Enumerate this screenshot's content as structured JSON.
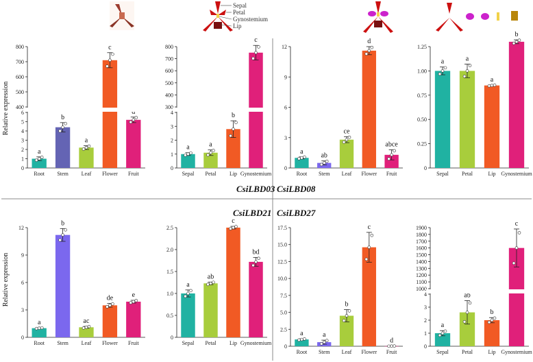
{
  "figure": {
    "colors": {
      "teal": "#20b2a2",
      "slate_blue": "#6464b4",
      "violet": "#7b68ee",
      "lime": "#a8cd3c",
      "orange": "#f15a24",
      "magenta": "#e0207a",
      "dots": "#ffffff",
      "divider": "#888888"
    },
    "flower_parts": [
      "Sepal",
      "Petal",
      "Gynostemium",
      "Lip"
    ],
    "gene_labels": [
      "CsiLBD03",
      "CsiLBD08",
      "CsiLBD21",
      "CsiLBD27"
    ],
    "ylabel": "Relative expression"
  },
  "chart_data": [
    {
      "type": "bar",
      "panel": "top-left-1",
      "gene": "CsiLBD03",
      "categories": [
        "Root",
        "Stem",
        "Leaf",
        "Flower",
        "Fruit"
      ],
      "values": [
        1.0,
        4.4,
        2.2,
        710,
        5.2
      ],
      "errors": [
        0.2,
        0.5,
        0.2,
        50,
        0.3
      ],
      "letters": [
        "a",
        "b",
        "a",
        "c",
        "d"
      ],
      "color_keys": [
        "teal",
        "slate_blue",
        "lime",
        "orange",
        "magenta"
      ],
      "broken_axis": true,
      "lower_ticks": [
        0,
        1,
        2,
        3,
        4,
        5,
        6
      ],
      "upper_ticks": [
        400,
        500,
        600,
        700,
        800
      ],
      "ylabel": "Relative expression"
    },
    {
      "type": "bar",
      "panel": "top-left-2",
      "gene": "CsiLBD03",
      "categories": [
        "Sepal",
        "Petal",
        "Lip",
        "Gynostemium"
      ],
      "values": [
        1.0,
        1.1,
        2.8,
        750
      ],
      "errors": [
        0.1,
        0.2,
        0.6,
        60
      ],
      "letters": [
        "a",
        "a",
        "b",
        "c"
      ],
      "color_keys": [
        "teal",
        "lime",
        "orange",
        "magenta"
      ],
      "broken_axis": true,
      "lower_ticks": [
        0,
        1,
        2,
        3,
        4
      ],
      "upper_ticks": [
        300,
        400,
        500,
        600,
        700,
        800
      ]
    },
    {
      "type": "bar",
      "panel": "top-right-1",
      "gene": "CsiLBD08",
      "categories": [
        "Root",
        "Stem",
        "Leaf",
        "Flower",
        "Fruit"
      ],
      "values": [
        1.0,
        0.5,
        2.8,
        11.6,
        1.3
      ],
      "errors": [
        0.1,
        0.2,
        0.3,
        0.4,
        0.5
      ],
      "letters": [
        "a",
        "ab",
        "ce",
        "d",
        "abce"
      ],
      "color_keys": [
        "teal",
        "violet",
        "lime",
        "orange",
        "magenta"
      ],
      "ylim": [
        0,
        12
      ],
      "ticks": [
        0,
        3,
        6,
        9,
        12
      ]
    },
    {
      "type": "bar",
      "panel": "top-right-2",
      "gene": "CsiLBD08",
      "categories": [
        "Sepal",
        "Petal",
        "Lip",
        "Gynostemium"
      ],
      "values": [
        1.0,
        1.0,
        0.85,
        1.3
      ],
      "errors": [
        0.04,
        0.07,
        0.005,
        0.02
      ],
      "letters": [
        "a",
        "a",
        "a",
        "b"
      ],
      "color_keys": [
        "teal",
        "lime",
        "orange",
        "magenta"
      ],
      "ylim": [
        0,
        1.25
      ],
      "ticks": [
        0,
        0.25,
        0.5,
        0.75,
        1.0,
        1.25
      ],
      "tick_labels": [
        "0",
        "0.25",
        "0.50",
        "0.75",
        "1.00",
        "1.25"
      ]
    },
    {
      "type": "bar",
      "panel": "bottom-left-1",
      "gene": "CsiLBD21",
      "categories": [
        "Root",
        "Stem",
        "Leaf",
        "Flower",
        "Fruit"
      ],
      "values": [
        1.0,
        11.2,
        1.1,
        3.5,
        3.9
      ],
      "errors": [
        0.05,
        0.7,
        0.1,
        0.2,
        0.15
      ],
      "letters": [
        "a",
        "b",
        "ac",
        "de",
        "e"
      ],
      "color_keys": [
        "teal",
        "violet",
        "lime",
        "orange",
        "magenta"
      ],
      "ylim": [
        0,
        12
      ],
      "ticks": [
        0,
        3,
        6,
        9,
        12
      ],
      "ylabel": "Relative expression"
    },
    {
      "type": "bar",
      "panel": "bottom-left-2",
      "gene": "CsiLBD21",
      "categories": [
        "Sepal",
        "Petal",
        "Lip",
        "Gynostemium"
      ],
      "values": [
        1.0,
        1.23,
        2.5,
        1.72
      ],
      "errors": [
        0.08,
        0.03,
        0.03,
        0.1
      ],
      "letters": [
        "a",
        "ab",
        "c",
        "bd"
      ],
      "color_keys": [
        "teal",
        "lime",
        "orange",
        "magenta"
      ],
      "ylim": [
        0,
        2.5
      ],
      "ticks": [
        0,
        0.5,
        1.0,
        1.5,
        2.0,
        2.5
      ],
      "tick_labels": [
        "0",
        "0.5",
        "1.0",
        "1.5",
        "2.0",
        "2.5"
      ]
    },
    {
      "type": "bar",
      "panel": "bottom-right-1",
      "gene": "CsiLBD27",
      "categories": [
        "Root",
        "Stem",
        "Leaf",
        "Flower",
        "Fruit"
      ],
      "values": [
        1.0,
        0.6,
        4.5,
        14.6,
        0.02
      ],
      "errors": [
        0.1,
        0.3,
        0.9,
        2.2,
        0.01
      ],
      "letters": [
        "a",
        "a",
        "b",
        "c",
        "d"
      ],
      "color_keys": [
        "teal",
        "violet",
        "lime",
        "orange",
        "magenta"
      ],
      "ylim": [
        0,
        17.5
      ],
      "ticks": [
        0,
        2.5,
        5.0,
        7.5,
        10.0,
        12.5,
        15.0,
        17.5
      ],
      "tick_labels": [
        "0",
        "2.5",
        "5.0",
        "7.5",
        "10.0",
        "12.5",
        "15.0",
        "17.5"
      ]
    },
    {
      "type": "bar",
      "panel": "bottom-right-2",
      "gene": "CsiLBD27",
      "categories": [
        "Sepal",
        "Petal",
        "Lip",
        "Gynostemium"
      ],
      "values": [
        1.0,
        2.6,
        2.0,
        1600
      ],
      "errors": [
        0.2,
        0.9,
        0.2,
        280
      ],
      "letters": [
        "a",
        "ab",
        "b",
        "c"
      ],
      "color_keys": [
        "teal",
        "lime",
        "orange",
        "magenta"
      ],
      "broken_axis": true,
      "lower_ticks": [
        0,
        1,
        2,
        3,
        4
      ],
      "upper_ticks": [
        1000,
        1100,
        1200,
        1300,
        1400,
        1500,
        1600,
        1700,
        1800,
        1900
      ]
    }
  ]
}
